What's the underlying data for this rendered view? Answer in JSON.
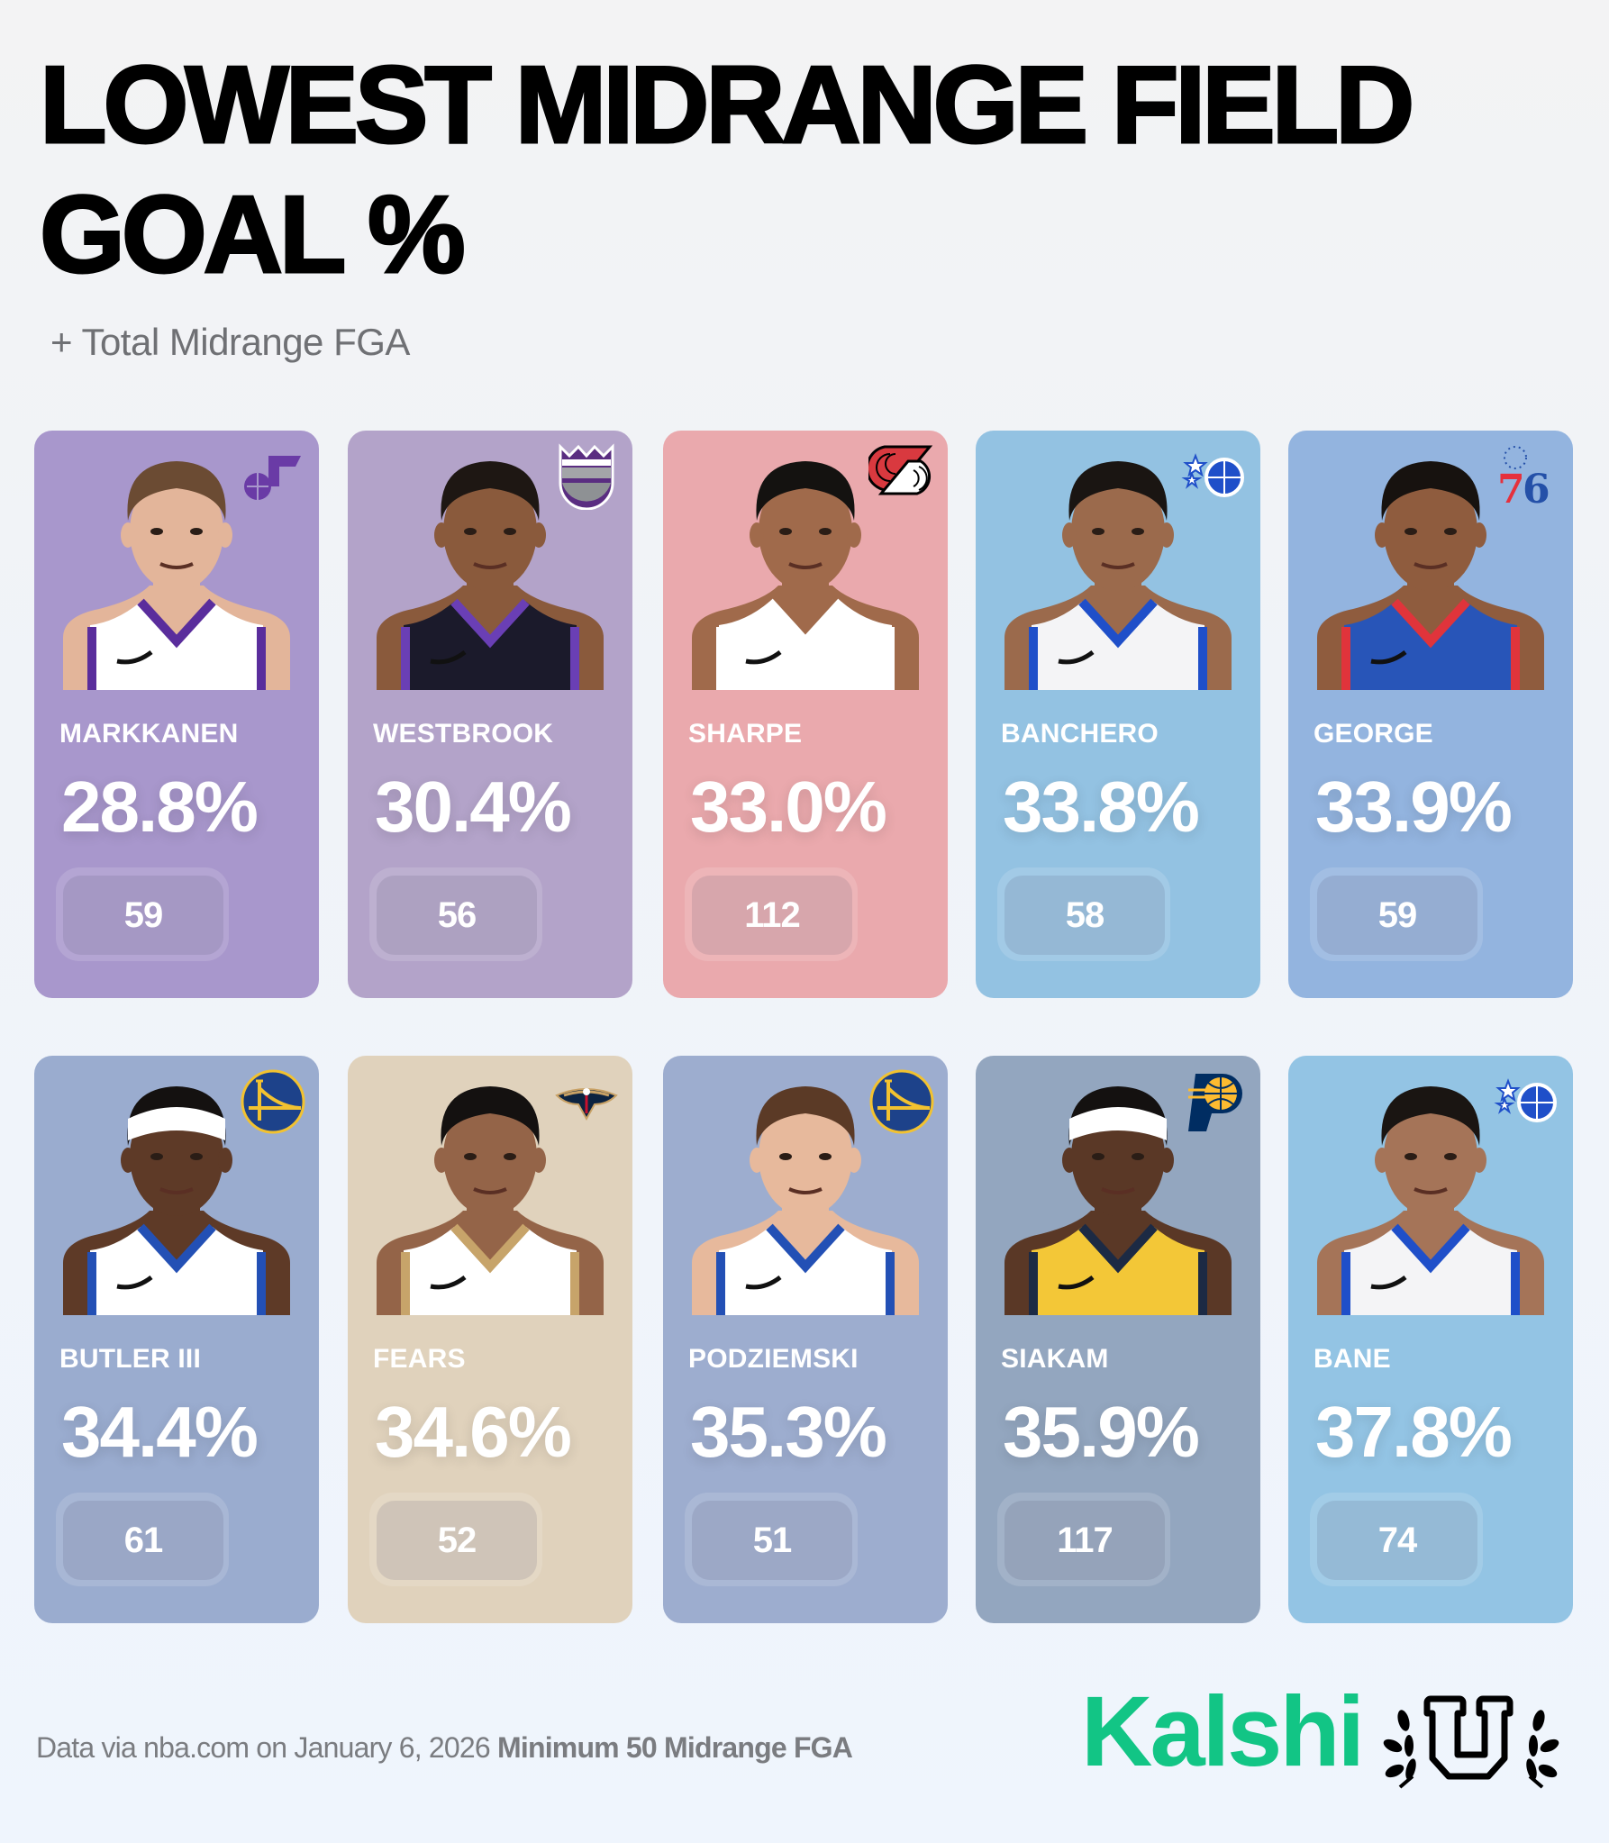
{
  "header": {
    "title_line1": "LOWEST MIDRANGE FIELD",
    "title_line2": "GOAL %",
    "subtitle": "+ Total Midrange FGA"
  },
  "players": [
    {
      "name": "MARKKANEN",
      "pct": "28.8%",
      "fga": "59",
      "team_logo": "jazz-logo-icon",
      "card_color": "#a897cc",
      "skin": "#e3b59a",
      "hair": "#6b4b33",
      "jersey": "#ffffff",
      "trim": "#5a2d9c"
    },
    {
      "name": "WESTBROOK",
      "pct": "30.4%",
      "fga": "56",
      "team_logo": "kings-logo-icon",
      "card_color": "#b3a3c9",
      "skin": "#8a5a3c",
      "hair": "#1e1713",
      "jersey": "#1b1a2b",
      "trim": "#6a3fb5"
    },
    {
      "name": "SHARPE",
      "pct": "33.0%",
      "fga": "112",
      "team_logo": "blazers-logo-icon",
      "card_color": "#eaa9ad",
      "skin": "#a06a4b",
      "hair": "#141210",
      "jersey": "#ffffff",
      "trim": "#ffffff"
    },
    {
      "name": "BANCHERO",
      "pct": "33.8%",
      "fga": "58",
      "team_logo": "magic-logo-icon",
      "card_color": "#93c2e2",
      "skin": "#9b6a4c",
      "hair": "#1a1512",
      "jersey": "#f4f4f6",
      "trim": "#1f4fc9"
    },
    {
      "name": "GEORGE",
      "pct": "33.9%",
      "fga": "59",
      "team_logo": "sixers-logo-icon",
      "card_color": "#93b4df",
      "skin": "#8f5c3e",
      "hair": "#17120f",
      "jersey": "#2855b8",
      "trim": "#e0343b"
    },
    {
      "name": "BUTLER III",
      "pct": "34.4%",
      "fga": "61",
      "team_logo": "warriors-logo-icon",
      "card_color": "#9aaccf",
      "skin": "#5e3a27",
      "hair": "#ffffff",
      "jersey": "#ffffff",
      "trim": "#2350b5"
    },
    {
      "name": "FEARS",
      "pct": "34.6%",
      "fga": "52",
      "team_logo": "pelicans-logo-icon",
      "card_color": "#e0d2bc",
      "skin": "#946448",
      "hair": "#141110",
      "jersey": "#ffffff",
      "trim": "#c7a46a"
    },
    {
      "name": "PODZIEMSKI",
      "pct": "35.3%",
      "fga": "51",
      "team_logo": "warriors-logo-icon",
      "card_color": "#9dadcf",
      "skin": "#e7b99c",
      "hair": "#5b3a26",
      "jersey": "#ffffff",
      "trim": "#2350b5"
    },
    {
      "name": "SIAKAM",
      "pct": "35.9%",
      "fga": "117",
      "team_logo": "pacers-logo-icon",
      "card_color": "#93a6bf",
      "skin": "#5a3826",
      "hair": "#ffffff",
      "jersey": "#f3c737",
      "trim": "#1c2a44"
    },
    {
      "name": "BANE",
      "pct": "37.8%",
      "fga": "74",
      "team_logo": "magic-logo-icon",
      "card_color": "#93c4e4",
      "skin": "#a57458",
      "hair": "#1a1512",
      "jersey": "#f4f4f6",
      "trim": "#1f4fc9"
    }
  ],
  "footer": {
    "source": "Data via nba.com on January 6, 2026",
    "note": "Minimum 50 Midrange FGA",
    "brand": "Kalshi",
    "brand_color": "#12c585"
  }
}
